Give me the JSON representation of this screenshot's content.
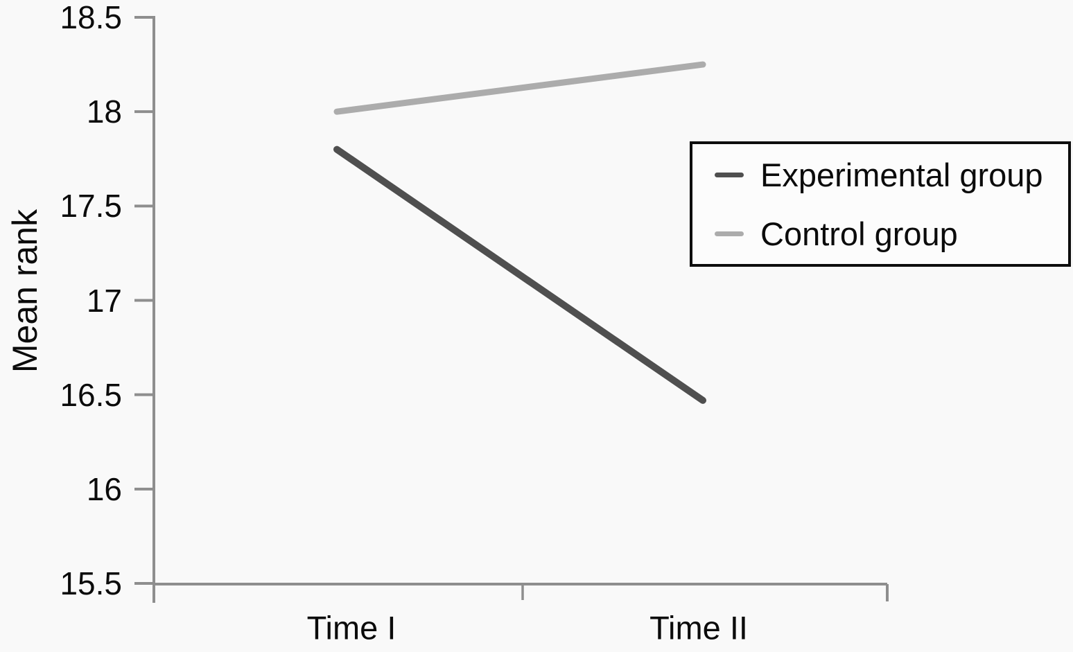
{
  "chart_data": {
    "type": "line",
    "categories": [
      "Time I",
      "Time II"
    ],
    "series": [
      {
        "name": "Experimental group",
        "values": [
          17.8,
          16.47
        ],
        "color": "#4f4f4f",
        "stroke_width": 10
      },
      {
        "name": "Control group",
        "values": [
          18.0,
          18.25
        ],
        "color": "#acacac",
        "stroke_width": 9
      }
    ],
    "title": "",
    "xlabel": "",
    "ylabel": "Mean rank",
    "ylim": [
      15.5,
      18.5
    ],
    "y_ticks": [
      "18.5",
      "18",
      "17.5",
      "17",
      "16.5",
      "16",
      "15.5"
    ],
    "grid": false,
    "legend_position": "upper right"
  },
  "colors": {
    "axis": "#8e8e8e",
    "text": "#0b0b0b",
    "background": "#f9f9f9",
    "legend_border": "#0d0d0d"
  }
}
